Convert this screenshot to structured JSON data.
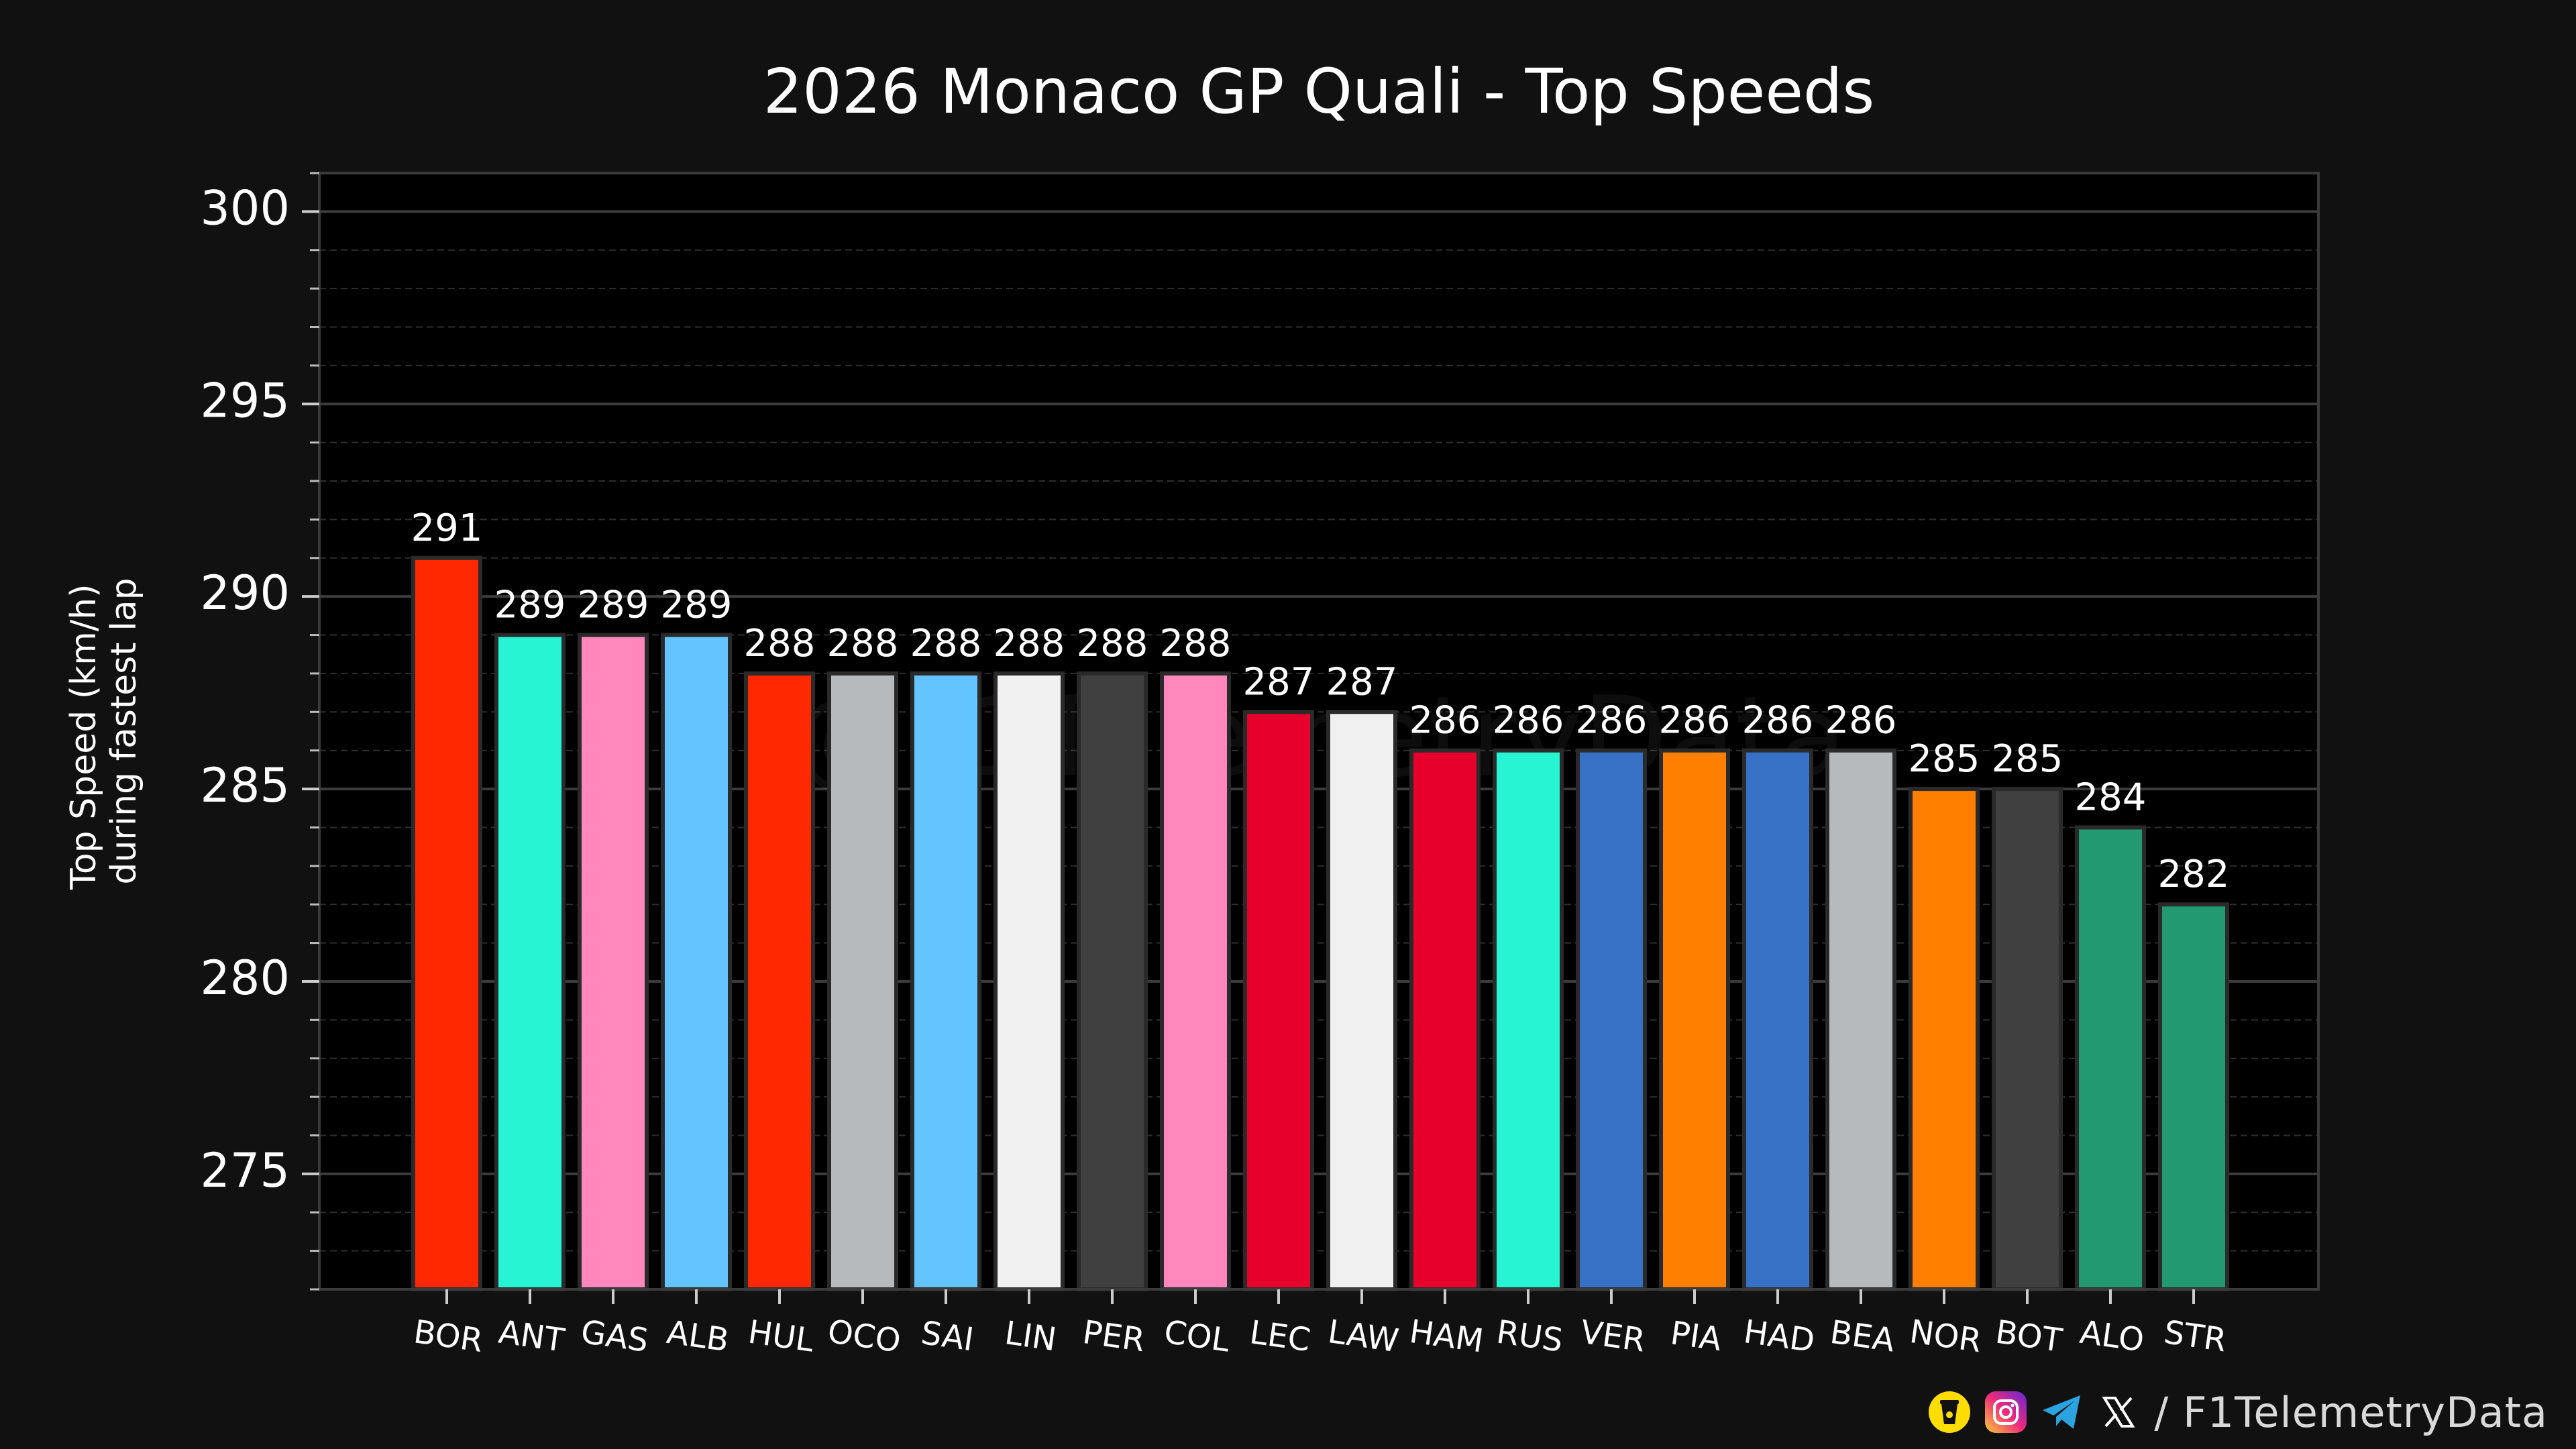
{
  "chart_data": {
    "type": "bar",
    "title": "2026 Monaco GP Quali - Top Speeds",
    "ylabel_lines": [
      "Top Speed (km/h)",
      "during fastest lap"
    ],
    "xlabel": "",
    "ylim": [
      272,
      301
    ],
    "yticks": [
      275,
      280,
      285,
      290,
      295,
      300
    ],
    "grid": true,
    "watermark": "@F1TelemetryData",
    "categories": [
      "BOR",
      "ANT",
      "GAS",
      "ALB",
      "HUL",
      "OCO",
      "SAI",
      "LIN",
      "PER",
      "COL",
      "LEC",
      "LAW",
      "HAM",
      "RUS",
      "VER",
      "PIA",
      "HAD",
      "BEA",
      "NOR",
      "BOT",
      "ALO",
      "STR"
    ],
    "values": [
      291,
      289,
      289,
      289,
      288,
      288,
      288,
      288,
      288,
      288,
      287,
      287,
      286,
      286,
      286,
      286,
      286,
      286,
      285,
      285,
      284,
      282
    ],
    "colors": [
      "#FF2800",
      "#27F4D2",
      "#FF87BC",
      "#64C4FF",
      "#FF2800",
      "#B6BABD",
      "#64C4FF",
      "#F0F0F0",
      "#404040",
      "#FF87BC",
      "#E8002D",
      "#F0F0F0",
      "#E8002D",
      "#27F4D2",
      "#3671C6",
      "#FF8000",
      "#3671C6",
      "#B6BABD",
      "#FF8000",
      "#404040",
      "#229971",
      "#229971"
    ]
  },
  "footer": {
    "handle": "/ F1TelemetryData",
    "icons": [
      "buymeacoffee-icon",
      "instagram-icon",
      "telegram-icon",
      "x-icon"
    ]
  }
}
